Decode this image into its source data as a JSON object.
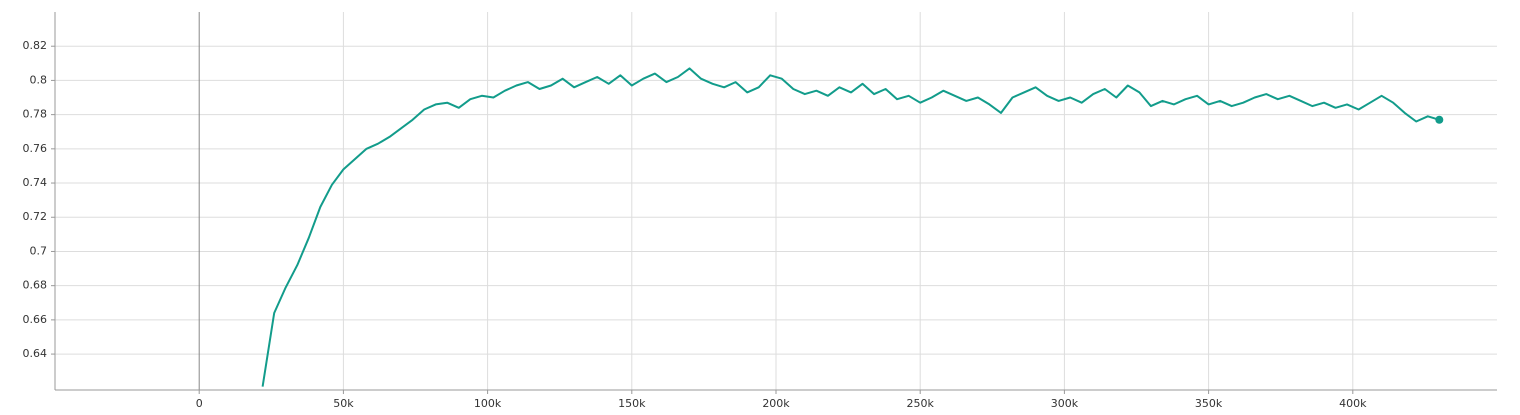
{
  "chart_data": {
    "type": "line",
    "x": [
      22000,
      26000,
      30000,
      34000,
      38000,
      42000,
      46000,
      50000,
      54000,
      58000,
      62000,
      66000,
      70000,
      74000,
      78000,
      82000,
      86000,
      90000,
      94000,
      98000,
      102000,
      106000,
      110000,
      114000,
      118000,
      122000,
      126000,
      130000,
      134000,
      138000,
      142000,
      146000,
      150000,
      154000,
      158000,
      162000,
      166000,
      170000,
      174000,
      178000,
      182000,
      186000,
      190000,
      194000,
      198000,
      202000,
      206000,
      210000,
      214000,
      218000,
      222000,
      226000,
      230000,
      234000,
      238000,
      242000,
      246000,
      250000,
      254000,
      258000,
      262000,
      266000,
      270000,
      274000,
      278000,
      282000,
      286000,
      290000,
      294000,
      298000,
      302000,
      306000,
      310000,
      314000,
      318000,
      322000,
      326000,
      330000,
      334000,
      338000,
      342000,
      346000,
      350000,
      354000,
      358000,
      362000,
      366000,
      370000,
      374000,
      378000,
      382000,
      386000,
      390000,
      394000,
      398000,
      402000,
      406000,
      410000,
      414000,
      418000,
      422000,
      426000,
      430000
    ],
    "values": [
      0.621,
      0.664,
      0.679,
      0.692,
      0.708,
      0.726,
      0.739,
      0.748,
      0.754,
      0.76,
      0.763,
      0.767,
      0.772,
      0.777,
      0.783,
      0.786,
      0.787,
      0.784,
      0.789,
      0.791,
      0.79,
      0.794,
      0.797,
      0.799,
      0.795,
      0.797,
      0.801,
      0.796,
      0.799,
      0.802,
      0.798,
      0.803,
      0.797,
      0.801,
      0.804,
      0.799,
      0.802,
      0.807,
      0.801,
      0.798,
      0.796,
      0.799,
      0.793,
      0.796,
      0.803,
      0.801,
      0.795,
      0.792,
      0.794,
      0.791,
      0.796,
      0.793,
      0.798,
      0.792,
      0.795,
      0.789,
      0.791,
      0.787,
      0.79,
      0.794,
      0.791,
      0.788,
      0.79,
      0.786,
      0.781,
      0.79,
      0.793,
      0.796,
      0.791,
      0.788,
      0.79,
      0.787,
      0.792,
      0.795,
      0.79,
      0.797,
      0.793,
      0.785,
      0.788,
      0.786,
      0.789,
      0.791,
      0.786,
      0.788,
      0.785,
      0.787,
      0.79,
      0.792,
      0.789,
      0.791,
      0.788,
      0.785,
      0.787,
      0.784,
      0.786,
      0.783,
      0.787,
      0.791,
      0.787,
      0.781,
      0.776,
      0.779,
      0.777
    ],
    "color": "#129c8b",
    "xlim": [
      -50000,
      450000
    ],
    "ylim": [
      0.619,
      0.84
    ],
    "xticks": [
      0,
      {
        "value": 50000,
        "label": "50k"
      },
      {
        "value": 100000,
        "label": "100k"
      },
      {
        "value": 150000,
        "label": "150k"
      },
      {
        "value": 200000,
        "label": "200k"
      },
      {
        "value": 250000,
        "label": "250k"
      },
      {
        "value": 300000,
        "label": "300k"
      },
      {
        "value": 350000,
        "label": "350k"
      },
      {
        "value": 400000,
        "label": "400k"
      }
    ],
    "yticks": [
      0.64,
      0.66,
      0.68,
      0.7,
      0.72,
      0.74,
      0.76,
      0.78,
      0.8,
      0.82
    ],
    "grid": true
  }
}
